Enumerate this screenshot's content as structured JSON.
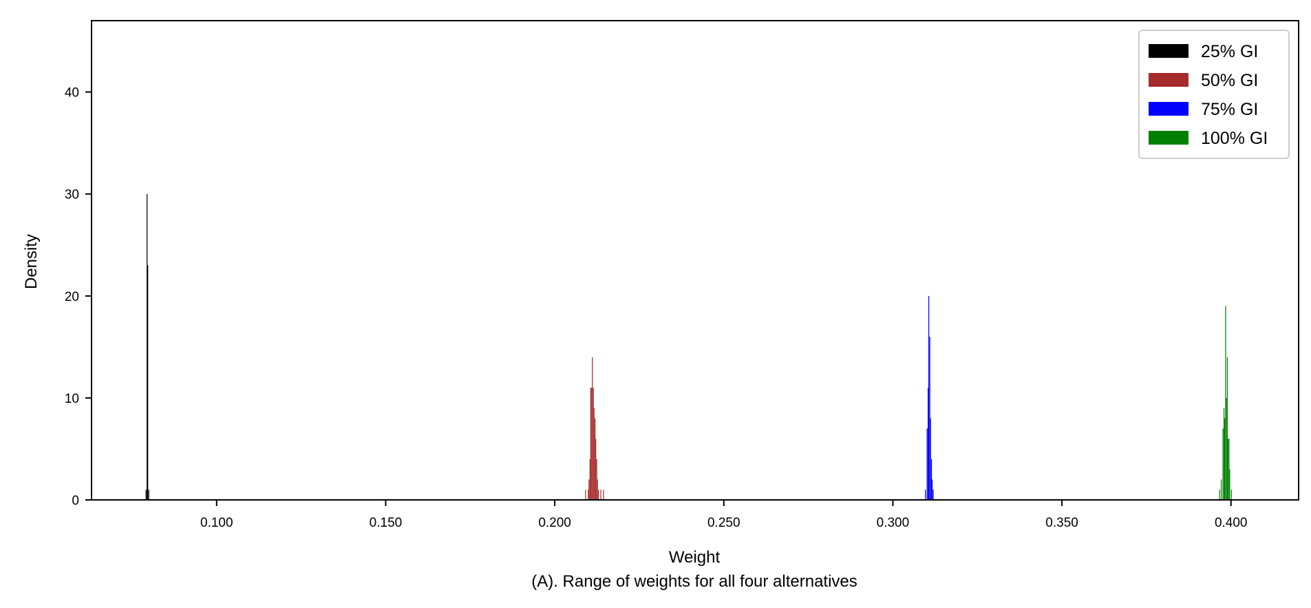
{
  "chart_data": {
    "type": "histogram",
    "title": "",
    "xlabel": "Weight",
    "ylabel": "Density",
    "caption": "(A). Range of weights for all four alternatives",
    "xlim": [
      0.063,
      0.42
    ],
    "ylim": [
      0,
      47
    ],
    "x_ticks": [
      0.1,
      0.15,
      0.2,
      0.25,
      0.3,
      0.35,
      0.4
    ],
    "x_tick_labels": [
      "0.100",
      "0.150",
      "0.200",
      "0.250",
      "0.300",
      "0.350",
      "0.400"
    ],
    "y_ticks": [
      0,
      10,
      20,
      30,
      40
    ],
    "y_tick_labels": [
      "0",
      "10",
      "20",
      "30",
      "40"
    ],
    "grid": false,
    "legend_position": "top-right",
    "series": [
      {
        "name": "25% GI",
        "color": "#000000",
        "bin_width": 0.00025,
        "bins": [
          [
            0.079,
            1
          ],
          [
            0.0793,
            30
          ],
          [
            0.0795,
            23
          ],
          [
            0.0798,
            1
          ]
        ]
      },
      {
        "name": "50% GI",
        "color": "#a52a2a",
        "bin_width": 0.00025,
        "bins": [
          [
            0.209,
            1
          ],
          [
            0.2098,
            1
          ],
          [
            0.21,
            2
          ],
          [
            0.2103,
            4
          ],
          [
            0.2105,
            11
          ],
          [
            0.2108,
            11
          ],
          [
            0.211,
            14
          ],
          [
            0.2113,
            11
          ],
          [
            0.2115,
            9
          ],
          [
            0.2118,
            8
          ],
          [
            0.212,
            6
          ],
          [
            0.2123,
            4
          ],
          [
            0.2125,
            2
          ],
          [
            0.2128,
            1
          ],
          [
            0.2135,
            1
          ],
          [
            0.2143,
            1
          ]
        ]
      },
      {
        "name": "75% GI",
        "color": "#0000ff",
        "bin_width": 0.00025,
        "bins": [
          [
            0.3095,
            1
          ],
          [
            0.31,
            7
          ],
          [
            0.3103,
            11
          ],
          [
            0.3105,
            20
          ],
          [
            0.3108,
            16
          ],
          [
            0.311,
            8
          ],
          [
            0.3113,
            4
          ],
          [
            0.3115,
            2
          ],
          [
            0.3118,
            1
          ]
        ]
      },
      {
        "name": "100% GI",
        "color": "#008000",
        "bin_width": 0.00025,
        "bins": [
          [
            0.3965,
            1
          ],
          [
            0.397,
            2
          ],
          [
            0.3975,
            7
          ],
          [
            0.3978,
            9
          ],
          [
            0.398,
            8
          ],
          [
            0.3983,
            19
          ],
          [
            0.3985,
            10
          ],
          [
            0.3988,
            14
          ],
          [
            0.399,
            6
          ],
          [
            0.3993,
            6
          ],
          [
            0.3995,
            3
          ],
          [
            0.4,
            1
          ]
        ]
      }
    ]
  }
}
